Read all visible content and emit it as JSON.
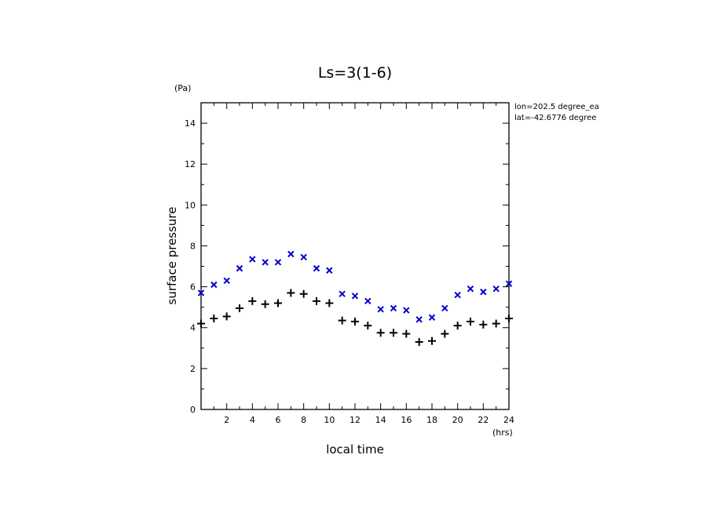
{
  "chart_data": {
    "type": "scatter",
    "title": "Ls=3(1-6)",
    "xlabel": "local time",
    "ylabel": "surface pressure",
    "x_unit": "(hrs)",
    "y_unit": "(Pa)",
    "xlim": [
      0,
      24
    ],
    "ylim": [
      0,
      15
    ],
    "x_ticks": [
      2,
      4,
      6,
      8,
      10,
      12,
      14,
      16,
      18,
      20,
      22,
      24
    ],
    "y_ticks": [
      0,
      2,
      4,
      6,
      8,
      10,
      12,
      14
    ],
    "grid": false,
    "annotations": [
      "lon=202.5 degree_ea",
      "lat=-42.6776 degree"
    ],
    "series": [
      {
        "marker": "x",
        "color": "#0000cc",
        "x": [
          0,
          1,
          2,
          3,
          4,
          5,
          6,
          7,
          8,
          9,
          10,
          11,
          12,
          13,
          14,
          15,
          16,
          17,
          18,
          19,
          20,
          21,
          22,
          23,
          24
        ],
        "y": [
          5.7,
          6.1,
          6.3,
          6.9,
          7.35,
          7.2,
          7.2,
          7.6,
          7.45,
          6.9,
          6.8,
          5.65,
          5.55,
          5.3,
          4.9,
          4.95,
          4.85,
          4.4,
          4.5,
          4.95,
          5.6,
          5.9,
          5.75,
          5.9,
          6.15
        ]
      },
      {
        "marker": "+",
        "color": "#000000",
        "x": [
          0,
          1,
          2,
          3,
          4,
          5,
          6,
          7,
          8,
          9,
          10,
          11,
          12,
          13,
          14,
          15,
          16,
          17,
          18,
          19,
          20,
          21,
          22,
          23,
          24
        ],
        "y": [
          4.2,
          4.45,
          4.55,
          4.95,
          5.3,
          5.15,
          5.2,
          5.7,
          5.65,
          5.3,
          5.2,
          4.35,
          4.3,
          4.1,
          3.75,
          3.75,
          3.7,
          3.3,
          3.35,
          3.7,
          4.1,
          4.3,
          4.15,
          4.2,
          4.45
        ]
      }
    ]
  }
}
